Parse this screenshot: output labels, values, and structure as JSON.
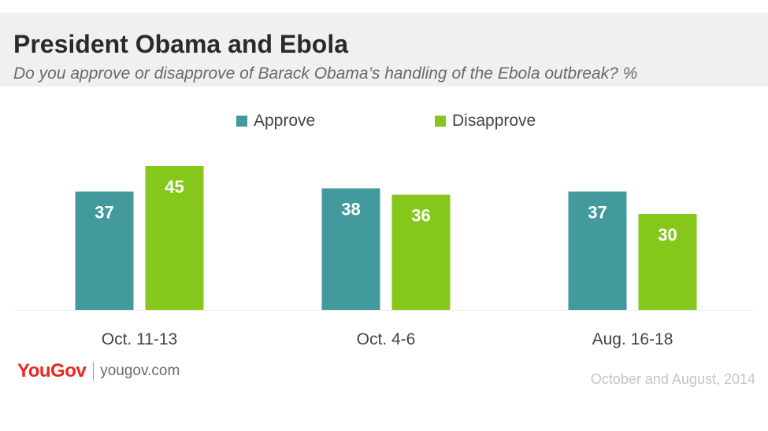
{
  "chart_data": {
    "type": "bar",
    "title": "President Obama and Ebola",
    "subtitle": "Do you approve or disapprove of Barack Obama’s handling of the Ebola outbreak? %",
    "categories": [
      "Oct. 11-13",
      "Oct. 4-6",
      "Aug. 16-18"
    ],
    "series": [
      {
        "name": "Approve",
        "values": [
          37,
          38,
          37
        ],
        "color": "#429a9d"
      },
      {
        "name": "Disapprove",
        "values": [
          45,
          36,
          30
        ],
        "color": "#86c71b"
      }
    ],
    "ylim": [
      0,
      45
    ],
    "grid": false,
    "legend": "top-center",
    "data_labels": true
  },
  "brand": {
    "logo": "YouGov",
    "url": "yougov.com"
  },
  "footnote": "October and August, 2014"
}
